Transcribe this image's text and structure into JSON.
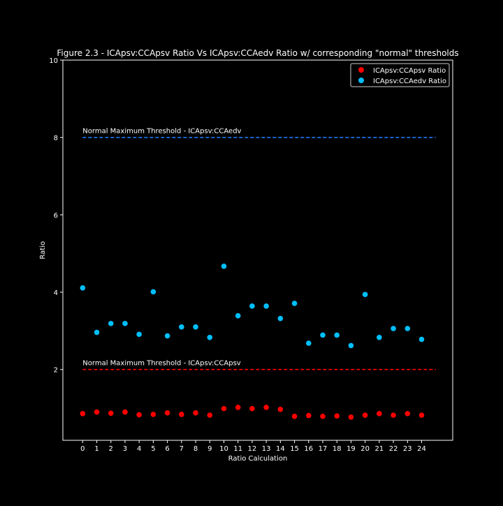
{
  "chart_data": {
    "type": "scatter",
    "title": "Figure 2.3 - ICApsv:CCApsv Ratio Vs ICApsv:CCAedv Ratio w/ corresponding \"normal\" thresholds",
    "xlabel": "Ratio Calculation",
    "ylabel": "Ratio",
    "x_ticks": [
      "0",
      "1",
      "2",
      "3",
      "4",
      "5",
      "6",
      "7",
      "8",
      "9",
      "10",
      "11",
      "12",
      "13",
      "14",
      "15",
      "16",
      "17",
      "18",
      "19",
      "20",
      "21",
      "22",
      "23",
      "24"
    ],
    "y_ticks": [
      "2",
      "4",
      "6",
      "8",
      "10"
    ],
    "xlim": [
      -1.4,
      26.2
    ],
    "ylim": [
      0.17,
      10
    ],
    "grid": false,
    "legend_position": "top-right",
    "series": [
      {
        "name": "ICApsv:CCApsv Ratio",
        "color": "#ff0000",
        "x": [
          0,
          1,
          2,
          3,
          4,
          5,
          6,
          7,
          8,
          9,
          10,
          11,
          12,
          13,
          14,
          15,
          16,
          17,
          18,
          19,
          20,
          21,
          22,
          23,
          24
        ],
        "y": [
          0.86,
          0.9,
          0.87,
          0.9,
          0.83,
          0.84,
          0.88,
          0.84,
          0.88,
          0.82,
          0.99,
          1.02,
          0.99,
          1.02,
          0.97,
          0.79,
          0.81,
          0.79,
          0.8,
          0.77,
          0.82,
          0.86,
          0.82,
          0.86,
          0.82
        ]
      },
      {
        "name": "ICApsv:CCAedv Ratio",
        "color": "#00bfff",
        "x": [
          0,
          1,
          2,
          3,
          4,
          5,
          6,
          7,
          8,
          9,
          10,
          11,
          12,
          13,
          14,
          15,
          16,
          17,
          18,
          19,
          20,
          21,
          22,
          23,
          24
        ],
        "y": [
          4.11,
          2.96,
          3.19,
          3.19,
          2.91,
          4.01,
          2.87,
          3.1,
          3.1,
          2.83,
          4.67,
          3.39,
          3.64,
          3.64,
          3.32,
          3.71,
          2.68,
          2.89,
          2.89,
          2.62,
          3.94,
          2.83,
          3.06,
          3.06,
          2.78
        ]
      }
    ],
    "thresholds": [
      {
        "label": "Normal Maximum Threshold - ICApsv:CCAedv",
        "value": 8,
        "color": "#1f77ff",
        "x_start": 0,
        "x_end": 25
      },
      {
        "label": "Normal Maximum Threshold - ICApsv:CCApsv",
        "value": 2,
        "color": "#ff0000",
        "x_start": 0,
        "x_end": 25
      }
    ]
  }
}
